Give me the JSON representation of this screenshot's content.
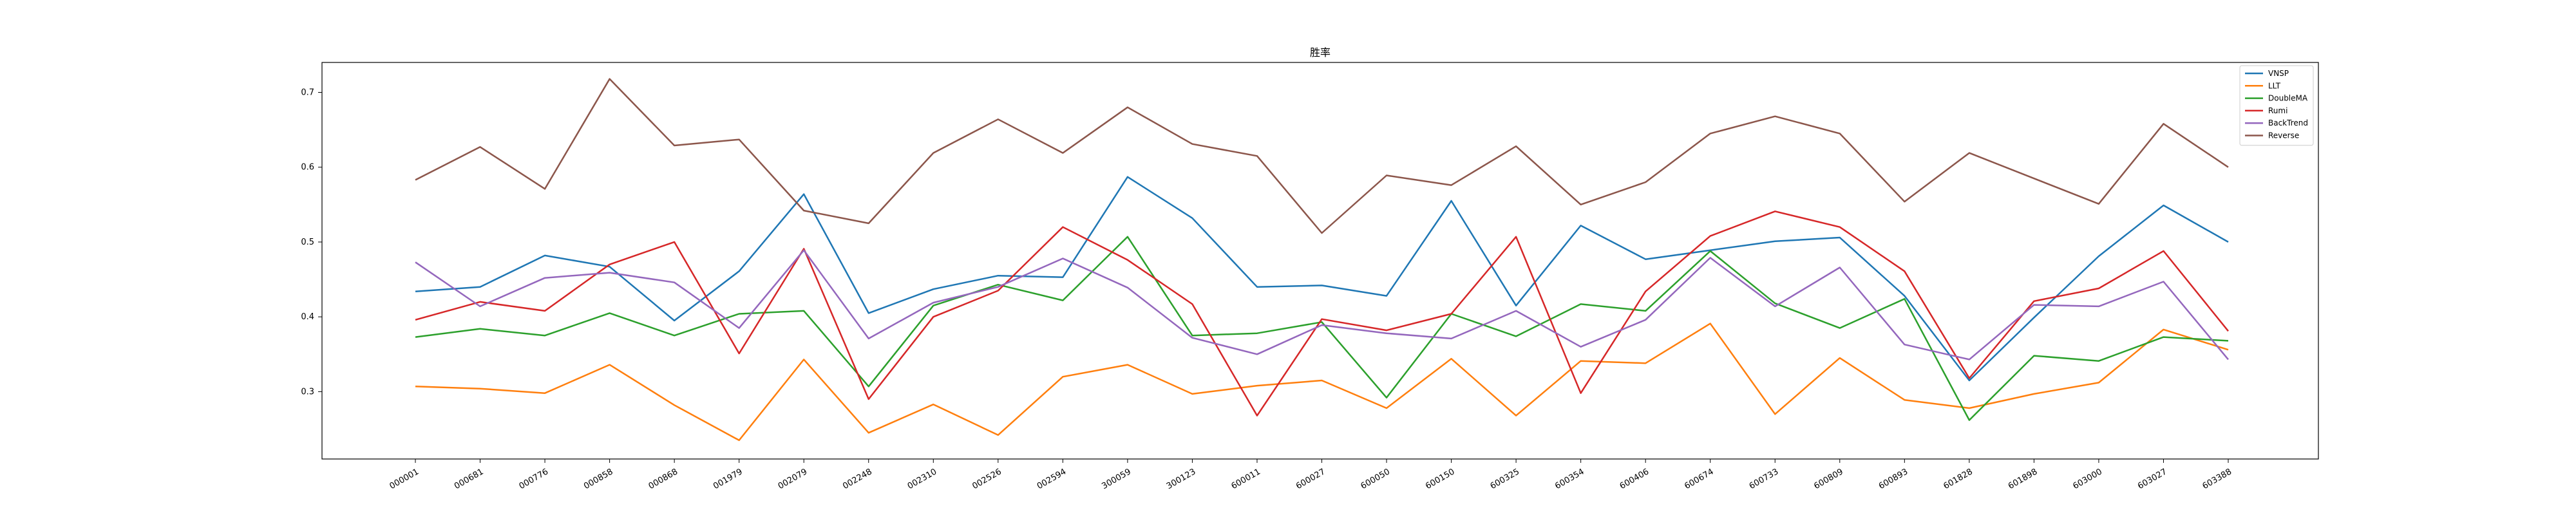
{
  "chart_data": {
    "type": "line",
    "title": "胜率",
    "xlabel": "",
    "ylabel": "",
    "ylim": [
      0.21,
      0.74
    ],
    "yticks": [
      0.3,
      0.4,
      0.5,
      0.6,
      0.7
    ],
    "grid": false,
    "legend_position": "upper-right",
    "categories": [
      "000001",
      "000681",
      "000776",
      "000858",
      "000868",
      "001979",
      "002079",
      "002248",
      "002310",
      "002526",
      "002594",
      "300059",
      "300123",
      "600011",
      "600027",
      "600050",
      "600150",
      "600325",
      "600354",
      "600406",
      "600674",
      "600733",
      "600809",
      "600893",
      "601828",
      "601898",
      "603000",
      "603027",
      "603388"
    ],
    "series": [
      {
        "name": "VNSP",
        "color": "#1f77b4",
        "values": [
          0.434,
          0.44,
          0.482,
          0.467,
          0.395,
          0.461,
          0.564,
          0.405,
          0.437,
          0.455,
          0.453,
          0.587,
          0.532,
          0.44,
          0.442,
          0.428,
          0.555,
          0.415,
          0.522,
          0.477,
          0.489,
          0.501,
          0.506,
          0.428,
          0.315,
          0.399,
          0.481,
          0.549,
          0.5
        ]
      },
      {
        "name": "LLT",
        "color": "#ff7f0e",
        "values": [
          0.307,
          0.304,
          0.298,
          0.336,
          0.282,
          0.235,
          0.343,
          0.245,
          0.283,
          0.242,
          0.32,
          0.336,
          0.297,
          0.308,
          0.315,
          0.278,
          0.344,
          0.268,
          0.341,
          0.338,
          0.391,
          0.27,
          0.345,
          0.289,
          0.278,
          0.297,
          0.312,
          0.383,
          0.356
        ]
      },
      {
        "name": "DoubleMA",
        "color": "#2ca02c",
        "values": [
          0.373,
          0.384,
          0.375,
          0.405,
          0.375,
          0.404,
          0.408,
          0.307,
          0.415,
          0.443,
          0.422,
          0.507,
          0.375,
          0.378,
          0.393,
          0.292,
          0.404,
          0.374,
          0.417,
          0.408,
          0.488,
          0.418,
          0.385,
          0.424,
          0.262,
          0.348,
          0.341,
          0.373,
          0.368
        ]
      },
      {
        "name": "Rumi",
        "color": "#d62728",
        "values": [
          0.396,
          0.42,
          0.408,
          0.47,
          0.5,
          0.351,
          0.491,
          0.29,
          0.4,
          0.435,
          0.52,
          0.476,
          0.417,
          0.268,
          0.397,
          0.382,
          0.404,
          0.507,
          0.298,
          0.434,
          0.508,
          0.541,
          0.52,
          0.461,
          0.318,
          0.421,
          0.438,
          0.488,
          0.381
        ]
      },
      {
        "name": "BackTrend",
        "color": "#9467bd",
        "values": [
          0.473,
          0.414,
          0.452,
          0.459,
          0.446,
          0.385,
          0.489,
          0.371,
          0.419,
          0.44,
          0.478,
          0.439,
          0.372,
          0.35,
          0.389,
          0.378,
          0.371,
          0.408,
          0.36,
          0.396,
          0.479,
          0.414,
          0.466,
          0.363,
          0.343,
          0.416,
          0.414,
          0.447,
          0.343
        ]
      },
      {
        "name": "Reverse",
        "color": "#8c564b",
        "values": [
          0.583,
          0.627,
          0.571,
          0.718,
          0.629,
          0.637,
          0.542,
          0.525,
          0.619,
          0.664,
          0.619,
          0.68,
          0.631,
          0.615,
          0.512,
          0.589,
          0.576,
          0.628,
          0.55,
          0.58,
          0.645,
          0.668,
          0.645,
          0.554,
          0.619,
          0.585,
          0.551,
          0.658,
          0.6
        ]
      }
    ]
  }
}
